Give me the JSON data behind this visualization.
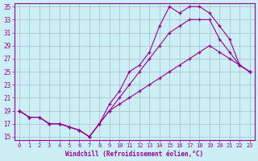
{
  "xlabel": "Windchill (Refroidissement éolien,°C)",
  "bg_color": "#cceef5",
  "line_color": "#990099",
  "grid_color": "#aabbcc",
  "ylim": [
    14.5,
    35.5
  ],
  "xlim_min": -0.5,
  "xlim_max": 23.5,
  "yticks": [
    15,
    17,
    19,
    21,
    23,
    25,
    27,
    29,
    31,
    33,
    35
  ],
  "xticks": [
    0,
    1,
    2,
    3,
    4,
    5,
    6,
    7,
    8,
    9,
    10,
    11,
    12,
    13,
    14,
    15,
    16,
    17,
    18,
    19,
    20,
    21,
    22,
    23
  ],
  "lines": [
    [
      19,
      18,
      18,
      17,
      17,
      16.5,
      16,
      15,
      17,
      20,
      22,
      25,
      26,
      28,
      32,
      35,
      34,
      35,
      35,
      34,
      32,
      30,
      26,
      25
    ],
    [
      19,
      18,
      18,
      17,
      17,
      16.5,
      16,
      15,
      17,
      19,
      21,
      23,
      25,
      27,
      29,
      31,
      32,
      33,
      33,
      33,
      30,
      28,
      26,
      25
    ],
    [
      19,
      18,
      18,
      17,
      17,
      16.5,
      16,
      15,
      17,
      19,
      20,
      21,
      22,
      23,
      24,
      25,
      26,
      27,
      28,
      29,
      28,
      27,
      26,
      25
    ]
  ]
}
